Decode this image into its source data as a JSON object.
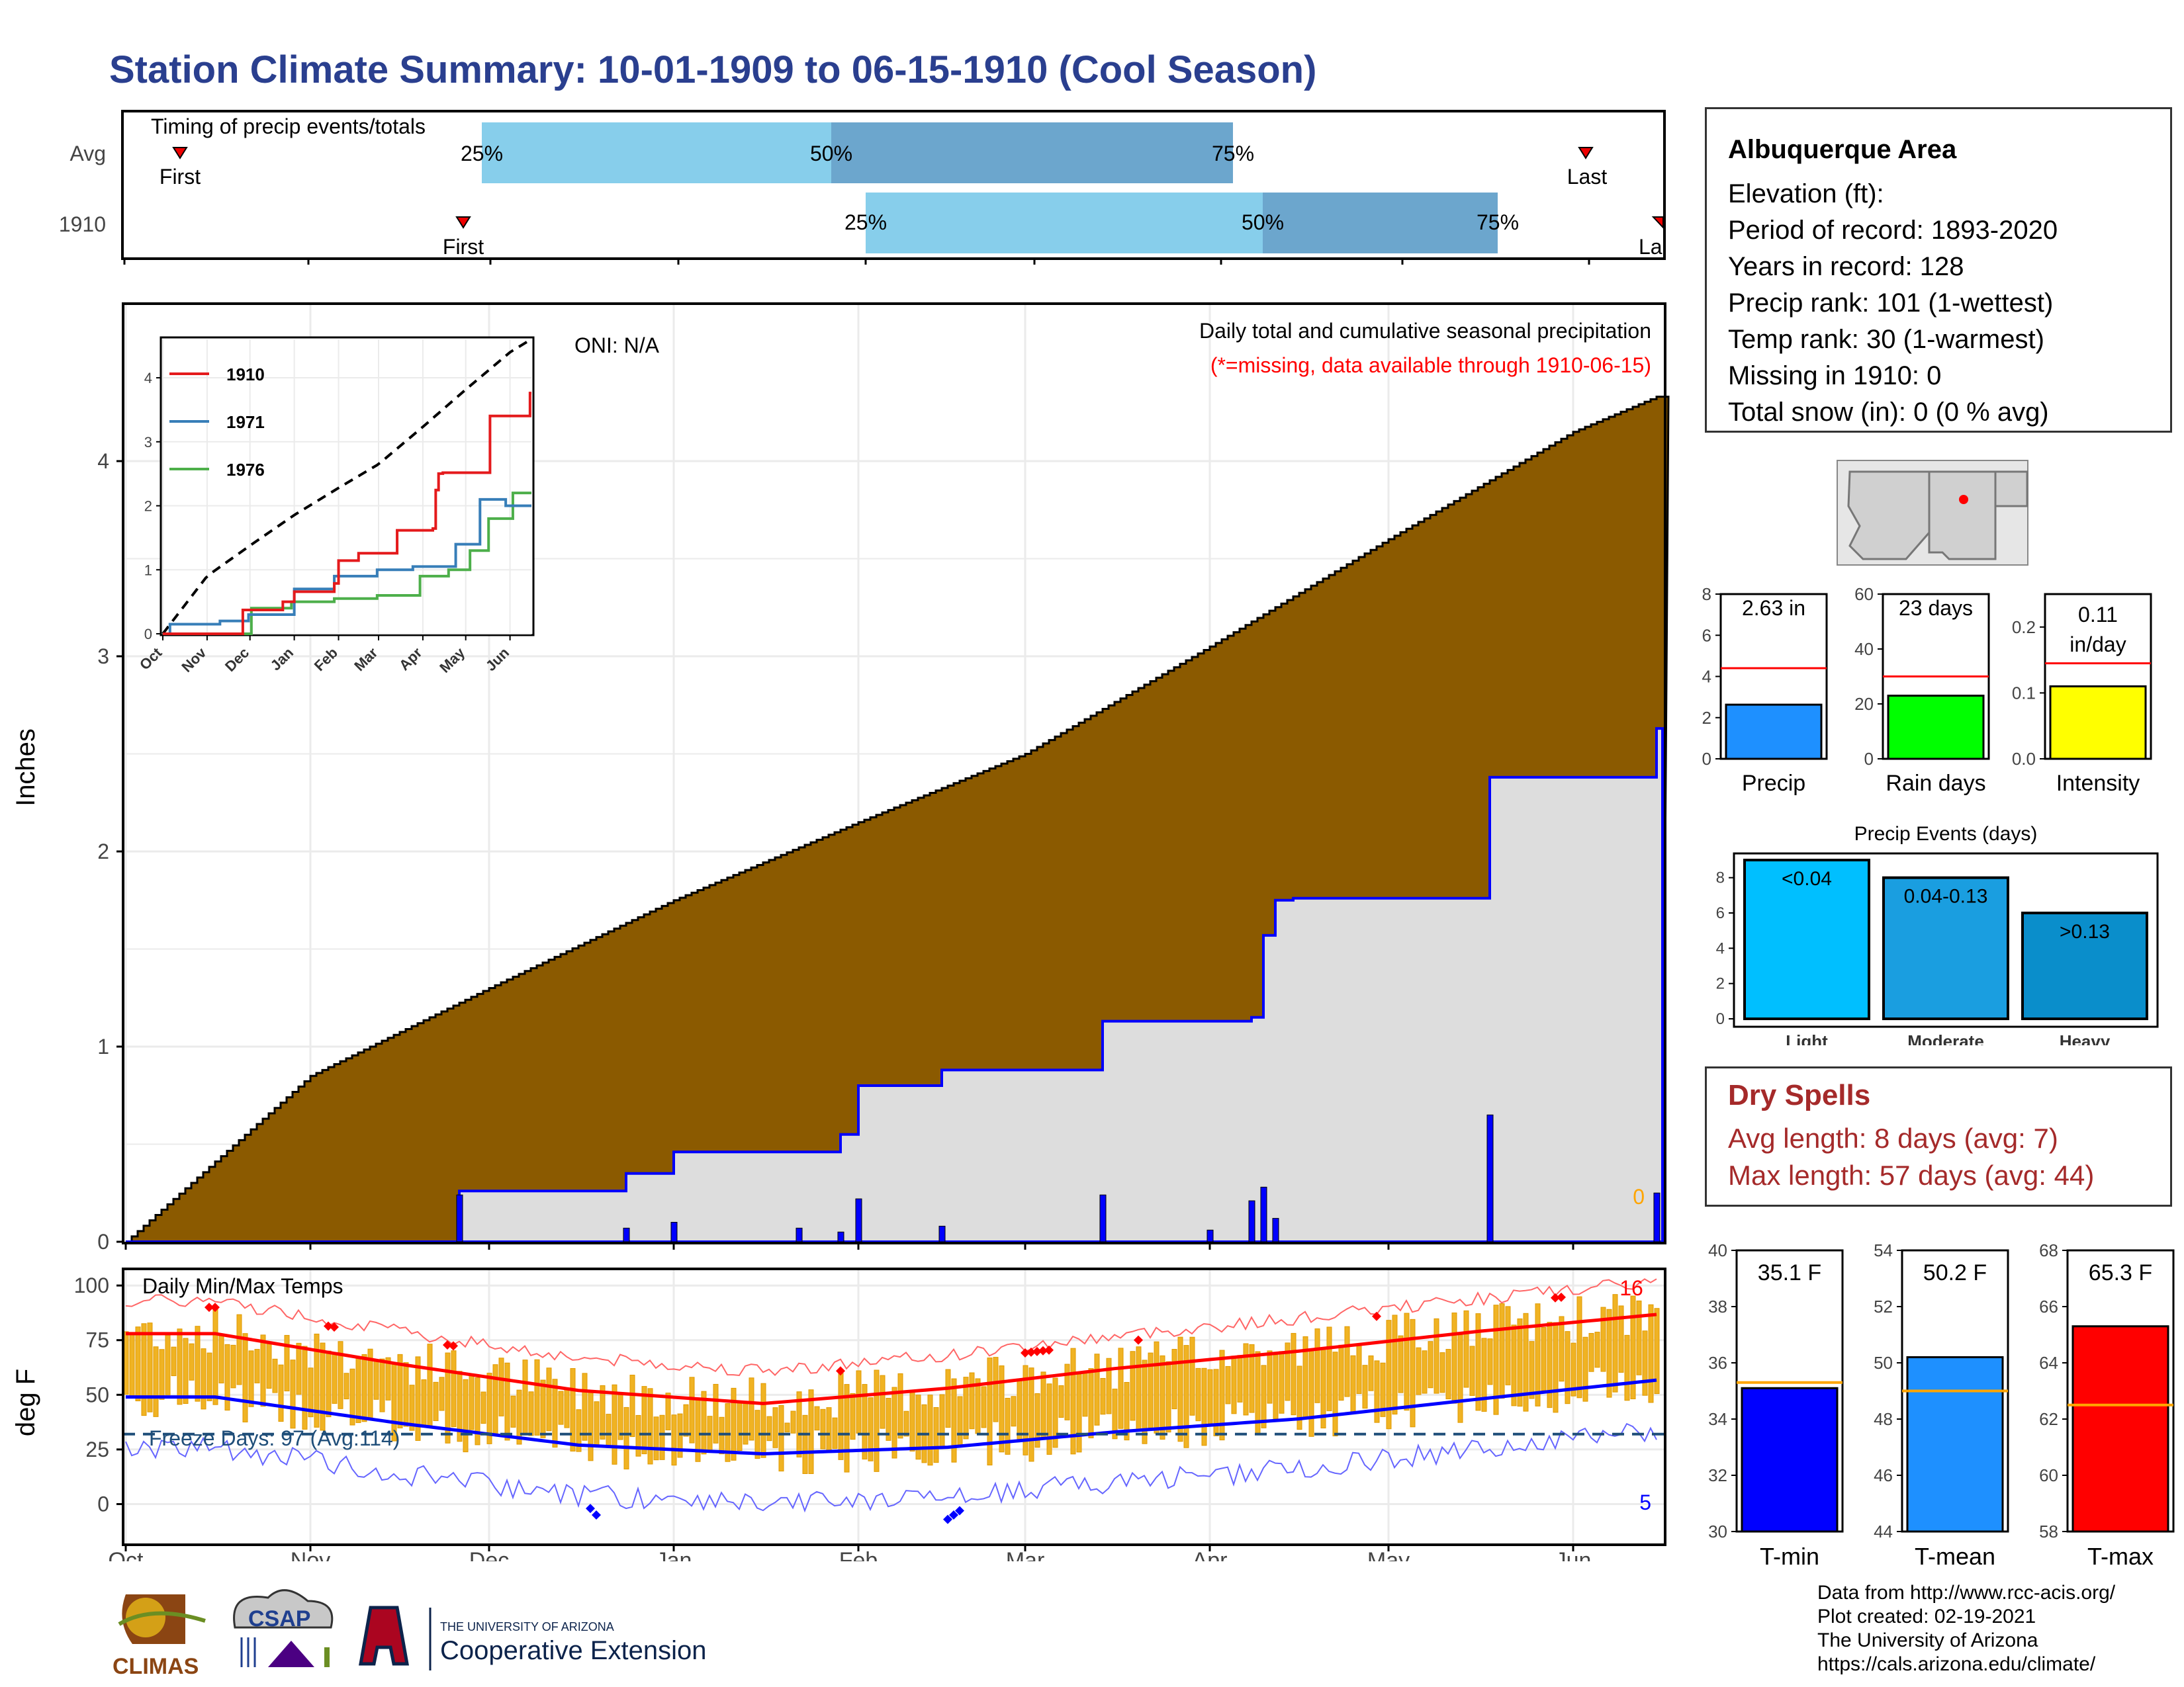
{
  "title": "Station Climate Summary: 10-01-1909 to 06-15-1910 (Cool Season)",
  "timing": {
    "title": "Timing of precip events/totals",
    "rows": [
      {
        "label": "Avg",
        "first_label": "First",
        "last_label": "Last",
        "p25": "25%",
        "p50": "50%",
        "p75": "75%"
      },
      {
        "label": "1910",
        "first_label": "First",
        "last_label": "Last",
        "p25": "25%",
        "p50": "50%",
        "p75": "75%"
      }
    ]
  },
  "station": {
    "name": "Albuquerque Area",
    "elevation": "Elevation (ft):",
    "period": "Period of record: 1893-2020",
    "years": "Years in record: 128",
    "precip_rank": "Precip rank: 101 (1-wettest)",
    "temp_rank": "Temp rank: 30 (1-warmest)",
    "missing": "Missing in 1910: 0",
    "snow": "Total snow (in): 0 (0 % avg)"
  },
  "precip_chart": {
    "ylabel": "Inches",
    "oni": "ONI: N/A",
    "caption": "Daily total and cumulative seasonal precipitation",
    "missing_note": "(*=missing, data available through 1910-06-15)",
    "zero_label": "0",
    "months": [
      "Oct",
      "Nov",
      "Dec",
      "Jan",
      "Feb",
      "Mar",
      "Apr",
      "May",
      "Jun"
    ],
    "yticks": [
      "0",
      "1",
      "2",
      "3",
      "4"
    ]
  },
  "inset": {
    "legend": [
      "1910",
      "1971",
      "1976"
    ],
    "colors": [
      "#e41a1c",
      "#377eb8",
      "#4daf4a"
    ],
    "yticks": [
      "0",
      "1",
      "2",
      "3",
      "4"
    ],
    "months": [
      "Oct",
      "Nov",
      "Dec",
      "Jan",
      "Feb",
      "Mar",
      "Apr",
      "May",
      "Jun"
    ]
  },
  "temp_chart": {
    "ylabel": "deg F",
    "title": "Daily Min/Max Temps",
    "freeze": "Freeze Days: 97 (Avg:114)",
    "max_count": "16",
    "min_count": "5",
    "yticks": [
      "0",
      "25",
      "50",
      "75",
      "100"
    ],
    "months": [
      "Oct",
      "Nov",
      "Dec",
      "Jan",
      "Feb",
      "Mar",
      "Apr",
      "May",
      "Jun"
    ]
  },
  "mini_precip": [
    {
      "value_label": "2.63 in",
      "xlabel": "Precip",
      "yticks": [
        "0",
        "2",
        "4",
        "6",
        "8"
      ],
      "color": "#1e90ff"
    },
    {
      "value_label": "23 days",
      "xlabel": "Rain days",
      "yticks": [
        "0",
        "20",
        "40",
        "60"
      ],
      "color": "#00ff00"
    },
    {
      "value_label": "0.11 in/day",
      "value_label_1": "0.11",
      "value_label_2": "in/day",
      "xlabel": "Intensity",
      "yticks": [
        "0.0",
        "0.1",
        "0.2"
      ],
      "color": "#ffff00"
    }
  ],
  "events": {
    "title": "Precip Events (days)",
    "yticks": [
      "0",
      "2",
      "4",
      "6",
      "8"
    ],
    "bars": [
      {
        "label": "<0.04",
        "xlabel": "Light",
        "value": 9,
        "color": "#00bfff"
      },
      {
        "label": "0.04-0.13",
        "xlabel": "Moderate",
        "value": 8,
        "color": "#1a9ee0"
      },
      {
        "label": ">0.13",
        "xlabel": "Heavy",
        "value": 6,
        "color": "#0a8ecb"
      }
    ]
  },
  "dry_spells": {
    "title": "Dry Spells",
    "avg": "Avg length: 8 days (avg: 7)",
    "max": "Max length: 57 days (avg: 44)"
  },
  "temp_bars": [
    {
      "value_label": "35.1 F",
      "xlabel": "T-min",
      "yticks": [
        "30",
        "32",
        "34",
        "36",
        "38",
        "40"
      ],
      "color": "#0000ff"
    },
    {
      "value_label": "50.2 F",
      "xlabel": "T-mean",
      "yticks": [
        "44",
        "46",
        "48",
        "50",
        "52",
        "54"
      ],
      "color": "#1e90ff"
    },
    {
      "value_label": "65.3 F",
      "xlabel": "T-max",
      "yticks": [
        "58",
        "60",
        "62",
        "64",
        "66",
        "68"
      ],
      "color": "#ff0000"
    }
  ],
  "credits": {
    "l1": "Data from http://www.rcc-acis.org/",
    "l2": "Plot created: 02-19-2021",
    "l3": "The University of Arizona",
    "l4": "https://cals.arizona.edu/climate/"
  },
  "logos": {
    "climas": "CLIMAS",
    "csap": "CSAP",
    "ua_small": "THE UNIVERSITY OF ARIZONA",
    "ua_big": "Cooperative Extension"
  },
  "chart_data": [
    {
      "type": "area",
      "title": "Daily total and cumulative seasonal precipitation",
      "ylabel": "Inches",
      "ylim": [
        0,
        4.8
      ],
      "x_range": [
        "1909-10-01",
        "1910-06-15"
      ],
      "series": [
        {
          "name": "Avg",
          "x": [
            "1909-10-01",
            "1909-11-01",
            "1909-12-01",
            "1910-01-01",
            "1910-02-01",
            "1910-03-01",
            "1910-04-01",
            "1910-05-01",
            "1910-06-01",
            "1910-06-15"
          ],
          "values": [
            0,
            0.85,
            1.3,
            1.75,
            2.15,
            2.5,
            3.05,
            3.6,
            4.15,
            4.33
          ]
        },
        {
          "name": "1910",
          "x": [
            "1909-10-01",
            "1909-11-26",
            "1909-12-24",
            "1910-01-01",
            "1910-01-29",
            "1910-02-01",
            "1910-02-15",
            "1910-03-14",
            "1910-04-08",
            "1910-04-10",
            "1910-04-12",
            "1910-04-15",
            "1910-05-18",
            "1910-06-14",
            "1910-06-15"
          ],
          "values": [
            0,
            0.26,
            0.35,
            0.46,
            0.55,
            0.8,
            0.88,
            1.13,
            1.15,
            1.57,
            1.75,
            1.76,
            2.38,
            2.38,
            2.63
          ]
        },
        {
          "name": "Daily",
          "x": [
            "1909-11-26",
            "1909-12-24",
            "1910-01-01",
            "1910-01-22",
            "1910-01-29",
            "1910-02-01",
            "1910-02-15",
            "1910-03-14",
            "1910-04-01",
            "1910-04-08",
            "1910-04-10",
            "1910-04-12",
            "1910-05-18",
            "1910-06-15"
          ],
          "values": [
            0.24,
            0.07,
            0.1,
            0.07,
            0.05,
            0.22,
            0.08,
            0.24,
            0.06,
            0.21,
            0.28,
            0.12,
            0.65,
            0.25
          ]
        }
      ]
    },
    {
      "type": "line",
      "title": "Daily Min/Max Temps",
      "ylabel": "deg F",
      "ylim": [
        -18,
        107
      ],
      "categories": [
        "Oct",
        "Nov",
        "Dec",
        "Jan",
        "Feb",
        "Mar",
        "Apr",
        "May",
        "Jun"
      ],
      "series": [
        {
          "name": "Avg max",
          "values": [
            78,
            64,
            52,
            46,
            53,
            62,
            70,
            79,
            87
          ]
        },
        {
          "name": "Avg min",
          "values": [
            49,
            37,
            27,
            23,
            26,
            33,
            39,
            48,
            57
          ]
        }
      ]
    },
    {
      "type": "bar",
      "title": "Precip Events (days)",
      "categories": [
        "Light",
        "Moderate",
        "Heavy"
      ],
      "values": [
        9,
        8,
        6
      ]
    },
    {
      "type": "bar",
      "categories": [
        "Precip",
        "Rain days",
        "Intensity"
      ],
      "values": [
        2.63,
        23,
        0.11
      ],
      "averages": [
        4.4,
        30,
        0.145
      ]
    },
    {
      "type": "bar",
      "categories": [
        "T-min",
        "T-mean",
        "T-max"
      ],
      "values": [
        35.1,
        50.2,
        65.3
      ],
      "averages": [
        35.3,
        49.0,
        62.5
      ]
    }
  ]
}
